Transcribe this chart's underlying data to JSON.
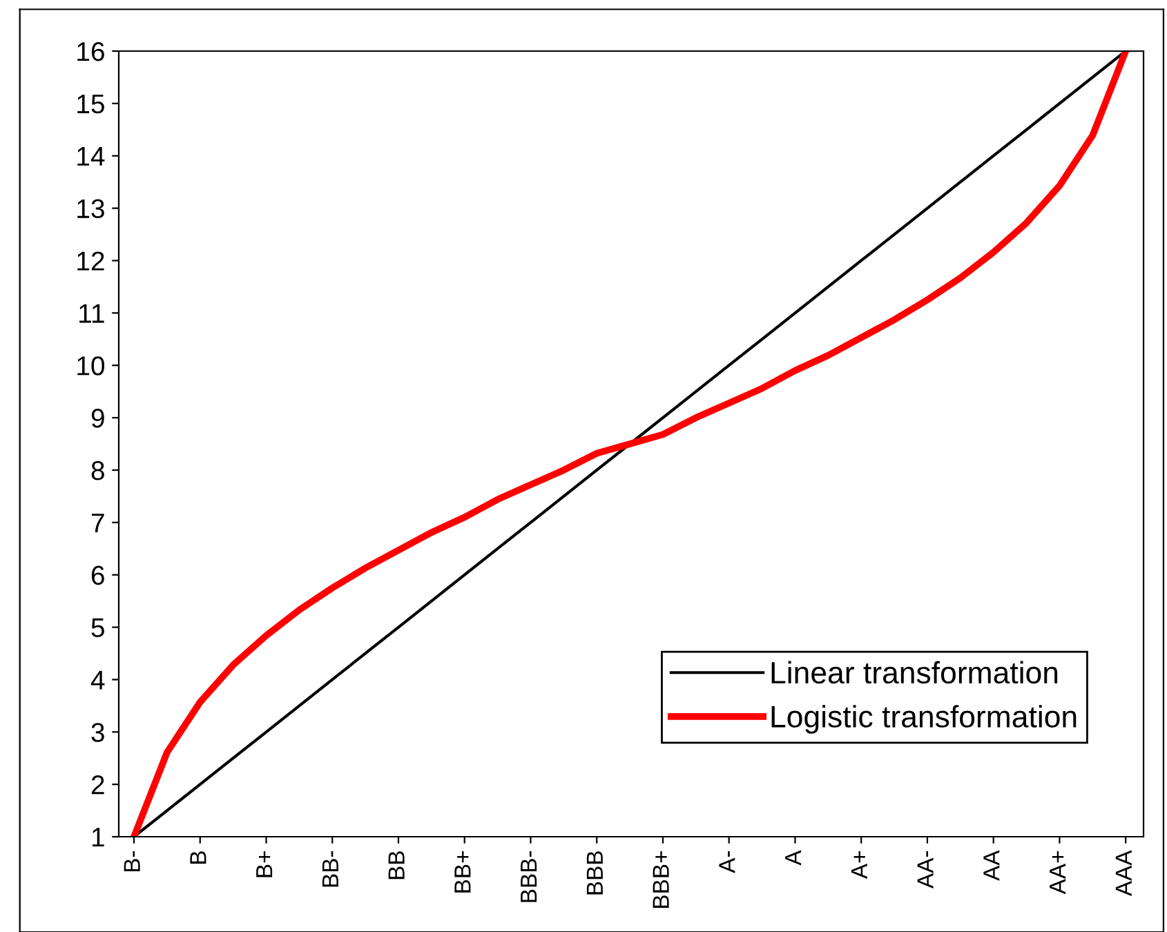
{
  "chart_data": {
    "type": "line",
    "categories": [
      "B-",
      null,
      "B",
      null,
      "B+",
      null,
      "BB-",
      null,
      "BB",
      null,
      "BB+",
      null,
      "BBB-",
      null,
      "BBB",
      null,
      "BBB+",
      null,
      "A-",
      null,
      "A",
      null,
      "A+",
      null,
      "AA-",
      null,
      "AA",
      null,
      "AA+",
      null,
      "AAA"
    ],
    "series": [
      {
        "name": "Linear transformation",
        "color": "#000000",
        "values": [
          1,
          1.5,
          2,
          2.5,
          3,
          3.5,
          4,
          4.5,
          5,
          5.5,
          6,
          6.5,
          7,
          7.5,
          8,
          8.5,
          9,
          9.5,
          10,
          10.5,
          11,
          11.5,
          12,
          12.5,
          13,
          13.5,
          14,
          14.5,
          15,
          15.5,
          16
        ]
      },
      {
        "name": "Logistic transformation",
        "color": "#ff0000",
        "values": [
          1,
          2.61,
          3.57,
          4.28,
          4.84,
          5.33,
          5.75,
          6.13,
          6.47,
          6.81,
          7.1,
          7.44,
          7.72,
          8.0,
          8.32,
          8.5,
          8.68,
          9.0,
          9.28,
          9.56,
          9.9,
          10.19,
          10.53,
          10.87,
          11.25,
          11.67,
          12.16,
          12.72,
          13.43,
          14.39,
          16
        ]
      }
    ],
    "ylim": [
      1,
      16
    ],
    "yticks": [
      1,
      2,
      3,
      4,
      5,
      6,
      7,
      8,
      9,
      10,
      11,
      12,
      13,
      14,
      15,
      16
    ],
    "grid": false,
    "legend": "bottom right",
    "marker": "none",
    "line_style": "solid"
  }
}
